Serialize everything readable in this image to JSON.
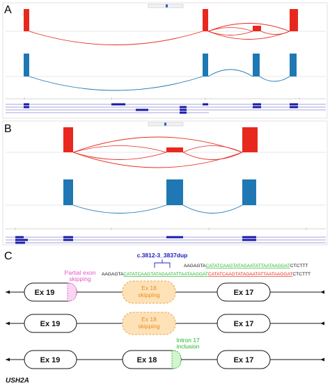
{
  "panels": {
    "a_label": "A",
    "b_label": "B",
    "c_label": "C"
  },
  "panel_c": {
    "variant": "c.3812-3_3837dup",
    "sequence": {
      "plain_prefix": "AAGAGTA",
      "green_dup": "CATATCAAGTATAGAATATTAATAAGGAT",
      "red_dup": "CATATCAAGTATAGAATATTAATAAGGAT",
      "plain_suffix": "CTCTTT",
      "top_prefix": "AAGAGTA",
      "top_green": "CATATCAAGTATAGAATATTAATAAGGAT",
      "top_suffix": "CTCTTT"
    },
    "rows": [
      {
        "left": "Ex 19",
        "middle": "Ex 18",
        "middle_note_1": "Ex 18",
        "middle_note_2": "skipping",
        "right": "Ex 17",
        "tag_1": "Partial exon",
        "tag_2": "skipping"
      },
      {
        "left": "Ex 19",
        "middle_note_1": "Ex 18",
        "middle_note_2": "skipping",
        "right": "Ex 17"
      },
      {
        "left": "Ex 19",
        "middle": "Ex 18",
        "right": "Ex 17",
        "tag_1": "Intron 17",
        "tag_2": "inclusion"
      }
    ],
    "gene": "USH2A"
  },
  "colors": {
    "red_track": "#e8281e",
    "blue_track": "#1f78b4",
    "refseq_blue": "#1a1aa8",
    "orange_fill": "#fde2b8",
    "orange_stroke": "#f4a24a",
    "pink": "#e055c8",
    "green": "#22b52a",
    "variant_blue": "#2020c0"
  }
}
